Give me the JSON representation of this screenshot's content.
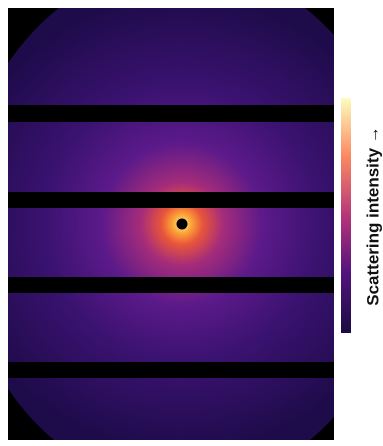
{
  "colorbar": {
    "label": "Scattering intensity →"
  }
}
